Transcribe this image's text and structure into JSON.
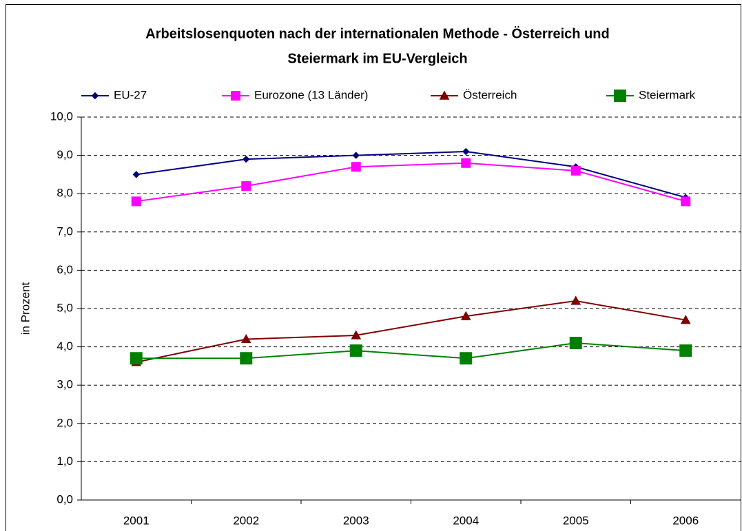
{
  "chart_data": {
    "type": "line",
    "title": [
      "Arbeitslosenquoten nach der internationalen Methode - Österreich und",
      "Steiermark im EU-Vergleich"
    ],
    "y_label": "in Prozent",
    "categories": [
      "2001",
      "2002",
      "2003",
      "2004",
      "2005",
      "2006"
    ],
    "series": [
      {
        "name": "EU-27",
        "color": "#000080",
        "marker": "diamond",
        "marker_size": 9,
        "values": [
          8.5,
          8.9,
          9.0,
          9.1,
          8.7,
          7.9
        ]
      },
      {
        "name": "Eurozone (13 Länder)",
        "color": "#ff00ff",
        "marker": "square",
        "marker_size": 13,
        "values": [
          7.8,
          8.2,
          8.7,
          8.8,
          8.6,
          7.8
        ]
      },
      {
        "name": "Österreich",
        "color": "#800000",
        "marker": "triangle",
        "marker_size": 13,
        "values": [
          3.6,
          4.2,
          4.3,
          4.8,
          5.2,
          4.7
        ]
      },
      {
        "name": "Steiermark",
        "color": "#008000",
        "marker": "square",
        "marker_size": 17,
        "values": [
          3.7,
          3.7,
          3.9,
          3.7,
          4.1,
          3.9
        ]
      }
    ],
    "ylim": [
      0,
      10
    ],
    "yticks": [
      {
        "value": 0,
        "label": "0,0"
      },
      {
        "value": 1,
        "label": "1,0"
      },
      {
        "value": 2,
        "label": "2,0"
      },
      {
        "value": 3,
        "label": "3,0"
      },
      {
        "value": 4,
        "label": "4,0"
      },
      {
        "value": 5,
        "label": "5,0"
      },
      {
        "value": 6,
        "label": "6,0"
      },
      {
        "value": 7,
        "label": "7,0"
      },
      {
        "value": 8,
        "label": "8,0"
      },
      {
        "value": 9,
        "label": "9,0"
      },
      {
        "value": 10,
        "label": "10,0"
      }
    ],
    "grid": true,
    "legend": "top"
  }
}
